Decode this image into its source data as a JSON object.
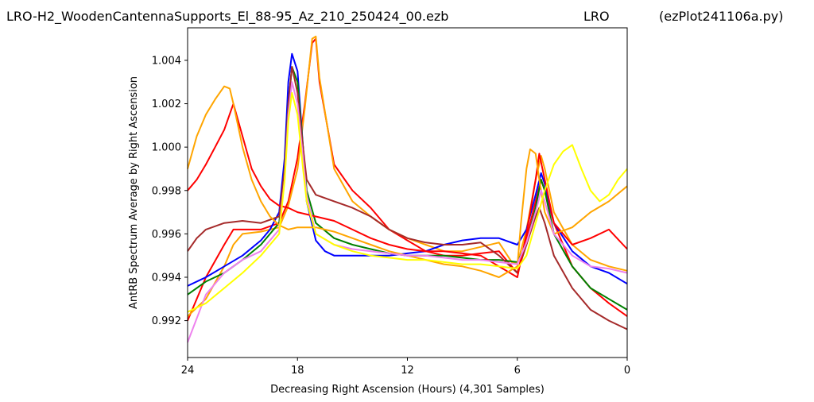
{
  "header": {
    "file_title": "LRO-H2_WoodenCantennaSupports_El_88-95_Az_210_250424_00.ezb",
    "observatory": "LRO",
    "script": "(ezPlot241106a.py)"
  },
  "chart_data": {
    "type": "line",
    "xlabel": "Decreasing Right Ascension (Hours) (4,301 Samples)",
    "ylabel": "AntRB Spectrum Average by Right Ascension",
    "xlim": [
      24,
      0
    ],
    "ylim": [
      0.9903,
      1.0055
    ],
    "x_ticks": [
      24,
      18,
      12,
      6,
      0
    ],
    "x_tick_labels": [
      "24",
      "18",
      "12",
      "6",
      "0"
    ],
    "y_ticks": [
      0.992,
      0.994,
      0.996,
      0.998,
      1.0,
      1.002,
      1.004
    ],
    "y_tick_labels": [
      "0.992",
      "0.994",
      "0.996",
      "0.998",
      "1.000",
      "1.002",
      "1.004"
    ],
    "grid": false,
    "legend": "none",
    "series": [
      {
        "color": "#ff0000",
        "x": [
          24,
          23,
          22,
          21.5,
          21,
          20,
          19,
          18.5,
          18,
          17.6,
          17.2,
          17,
          16.8,
          16,
          15,
          14,
          13,
          12,
          11,
          10,
          9,
          8,
          7,
          6.3,
          6,
          5.5,
          5,
          4.7,
          4.5,
          4,
          3,
          2,
          1,
          0
        ],
        "y": [
          0.992,
          0.994,
          0.9955,
          0.9962,
          0.9962,
          0.9962,
          0.9965,
          0.9975,
          0.9995,
          1.002,
          1.0048,
          1.005,
          1.003,
          0.9992,
          0.998,
          0.9972,
          0.9962,
          0.9957,
          0.9952,
          0.995,
          0.995,
          0.9951,
          0.9952,
          0.9945,
          0.9942,
          0.9958,
          0.9975,
          0.9985,
          0.998,
          0.9965,
          0.9945,
          0.9935,
          0.9928,
          0.9922
        ]
      },
      {
        "color": "#ffa500",
        "x": [
          24,
          23,
          22,
          21.5,
          21,
          20,
          19,
          18.5,
          18,
          17.6,
          17.2,
          17,
          16.8,
          16,
          15,
          14,
          13,
          12,
          11,
          10,
          9,
          8,
          7,
          6.3,
          6,
          5.5,
          5,
          4.7,
          4.5,
          4,
          3,
          2,
          1,
          0
        ],
        "y": [
          0.9922,
          0.993,
          0.9945,
          0.9955,
          0.996,
          0.9961,
          0.9963,
          0.9973,
          0.999,
          1.0018,
          1.005,
          1.0051,
          1.0032,
          0.999,
          0.9975,
          0.9968,
          0.9962,
          0.9958,
          0.9955,
          0.9952,
          0.9952,
          0.9954,
          0.9956,
          0.9947,
          0.9946,
          0.9962,
          0.9985,
          0.9996,
          0.999,
          0.997,
          0.9955,
          0.9948,
          0.9945,
          0.9943
        ]
      },
      {
        "color": "#0000ff",
        "x": [
          24,
          23,
          22,
          21,
          20,
          19.5,
          19,
          18.7,
          18.5,
          18.3,
          18,
          17.7,
          17.5,
          17,
          16.5,
          16,
          15,
          14,
          13,
          12,
          11,
          10,
          9,
          8,
          7,
          6,
          5.5,
          5,
          4.7,
          4.5,
          4,
          3,
          2,
          1,
          0
        ],
        "y": [
          0.9936,
          0.994,
          0.9945,
          0.995,
          0.9957,
          0.9962,
          0.997,
          0.9995,
          1.003,
          1.0043,
          1.0035,
          1.0,
          0.9975,
          0.9957,
          0.9952,
          0.995,
          0.995,
          0.995,
          0.995,
          0.9951,
          0.9952,
          0.9955,
          0.9957,
          0.9958,
          0.9958,
          0.9955,
          0.9962,
          0.9978,
          0.9988,
          0.9983,
          0.9965,
          0.9952,
          0.9945,
          0.9942,
          0.9937
        ]
      },
      {
        "color": "#008000",
        "x": [
          24,
          23,
          22,
          21,
          20,
          19,
          18.7,
          18.5,
          18.3,
          18,
          17.7,
          17.5,
          17,
          16,
          15,
          14,
          13,
          12,
          11,
          10,
          9,
          8,
          7,
          6,
          5.5,
          5,
          4.7,
          4.5,
          4,
          3,
          2,
          1,
          0
        ],
        "y": [
          0.9932,
          0.9938,
          0.9942,
          0.9948,
          0.9955,
          0.9965,
          0.999,
          1.002,
          1.0037,
          1.003,
          1.0,
          0.998,
          0.9965,
          0.9958,
          0.9955,
          0.9953,
          0.9951,
          0.995,
          0.995,
          0.995,
          0.9949,
          0.9948,
          0.9948,
          0.9947,
          0.9955,
          0.9972,
          0.9985,
          0.998,
          0.996,
          0.9945,
          0.9935,
          0.993,
          0.9925
        ]
      },
      {
        "color": "#a52a2a",
        "x": [
          24,
          23.5,
          23,
          22,
          21,
          20,
          19,
          18.7,
          18.5,
          18.3,
          18,
          17.7,
          17.5,
          17,
          16,
          15,
          14,
          13,
          12,
          11,
          10,
          9,
          8,
          7,
          6,
          5.5,
          5,
          4.8,
          4.5,
          4,
          3,
          2,
          1,
          0
        ],
        "y": [
          0.9952,
          0.9958,
          0.9962,
          0.9965,
          0.9966,
          0.9965,
          0.9968,
          0.999,
          1.002,
          1.0037,
          1.0025,
          1.0,
          0.9985,
          0.9978,
          0.9975,
          0.9972,
          0.9968,
          0.9962,
          0.9958,
          0.9956,
          0.9955,
          0.9955,
          0.9956,
          0.995,
          0.9942,
          0.9955,
          0.9968,
          0.9972,
          0.9965,
          0.995,
          0.9935,
          0.9925,
          0.992,
          0.9916
        ]
      },
      {
        "color": "#ff0000",
        "x": [
          24,
          23.5,
          23,
          22.5,
          22,
          21.5,
          21,
          20.5,
          20,
          19.5,
          19,
          18.5,
          18,
          17,
          16,
          15,
          14,
          13,
          12,
          11,
          10,
          9,
          8,
          7,
          6,
          5.5,
          5,
          4.8,
          4.5,
          4,
          3,
          2,
          1,
          0
        ],
        "y": [
          0.998,
          0.9985,
          0.9992,
          1.0,
          1.0008,
          1.002,
          1.0005,
          0.999,
          0.9982,
          0.9976,
          0.9973,
          0.9972,
          0.997,
          0.9968,
          0.9966,
          0.9962,
          0.9958,
          0.9955,
          0.9953,
          0.9952,
          0.9952,
          0.9951,
          0.995,
          0.9945,
          0.994,
          0.996,
          0.9985,
          0.9997,
          0.9985,
          0.9965,
          0.9955,
          0.9958,
          0.9962,
          0.9953
        ]
      },
      {
        "color": "#ffa500",
        "x": [
          24,
          23.5,
          23,
          22.5,
          22,
          21.7,
          21.5,
          21,
          20.5,
          20,
          19.5,
          19,
          18.5,
          18,
          17,
          16,
          15,
          14,
          13,
          12,
          11,
          10,
          9,
          8,
          7,
          6,
          5.8,
          5.5,
          5.3,
          5,
          4.8,
          4.5,
          4,
          3,
          2,
          1,
          0
        ],
        "y": [
          0.999,
          1.0005,
          1.0015,
          1.0022,
          1.0028,
          1.0027,
          1.002,
          1.0,
          0.9985,
          0.9975,
          0.9968,
          0.9964,
          0.9962,
          0.9963,
          0.9963,
          0.9961,
          0.9958,
          0.9955,
          0.9952,
          0.995,
          0.9948,
          0.9946,
          0.9945,
          0.9943,
          0.994,
          0.9945,
          0.9965,
          0.999,
          0.9999,
          0.9997,
          0.9985,
          0.997,
          0.996,
          0.9963,
          0.997,
          0.9975,
          0.9982
        ]
      },
      {
        "color": "#ee82ee",
        "x": [
          24,
          23,
          22,
          21,
          20,
          19,
          18.7,
          18.5,
          18.3,
          18,
          17.7,
          17.5,
          17,
          16,
          15,
          14,
          13,
          12,
          11,
          10,
          9,
          8,
          7,
          6,
          5.5,
          5,
          4.7,
          4.5,
          4,
          3,
          2,
          1,
          0
        ],
        "y": [
          0.991,
          0.9932,
          0.9942,
          0.9948,
          0.9952,
          0.9962,
          0.9985,
          1.0015,
          1.003,
          1.002,
          0.9995,
          0.9978,
          0.996,
          0.9955,
          0.9953,
          0.9952,
          0.9951,
          0.995,
          0.995,
          0.9949,
          0.9948,
          0.9948,
          0.9947,
          0.9946,
          0.9956,
          0.997,
          0.998,
          0.9975,
          0.996,
          0.995,
          0.9945,
          0.9944,
          0.9942
        ]
      },
      {
        "color": "#ffff00",
        "x": [
          24,
          23,
          22,
          21,
          20,
          19,
          18.7,
          18.5,
          18.3,
          18,
          17.7,
          17.5,
          17,
          16,
          15,
          14,
          13,
          12,
          11,
          10,
          9,
          8,
          7,
          6,
          5.5,
          5,
          4.5,
          4,
          3.5,
          3,
          2.5,
          2,
          1.5,
          1,
          0.5,
          0
        ],
        "y": [
          0.9924,
          0.9928,
          0.9935,
          0.9942,
          0.995,
          0.996,
          0.9985,
          1.0012,
          1.0025,
          1.0015,
          0.999,
          0.9975,
          0.996,
          0.9955,
          0.9952,
          0.995,
          0.9949,
          0.9948,
          0.9948,
          0.9947,
          0.9946,
          0.9946,
          0.9945,
          0.9944,
          0.995,
          0.9965,
          0.998,
          0.9992,
          0.9998,
          1.0001,
          0.999,
          0.998,
          0.9975,
          0.9978,
          0.9985,
          0.999
        ]
      }
    ]
  }
}
